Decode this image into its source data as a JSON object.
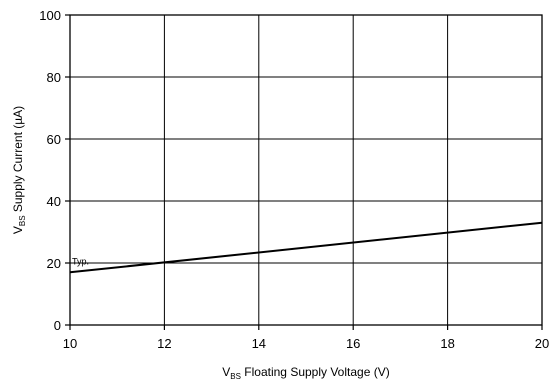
{
  "chart_data": {
    "type": "line",
    "xlabel": {
      "main": "V",
      "sub": "BS",
      "rest": " Floating Supply Voltage (V)"
    },
    "ylabel": {
      "main": "V",
      "sub": "BS",
      "rest": " Supply Current (µA)"
    },
    "xlim": [
      10,
      20
    ],
    "ylim": [
      0,
      100
    ],
    "xticks": [
      10,
      12,
      14,
      16,
      18,
      20
    ],
    "yticks": [
      0,
      20,
      40,
      60,
      80,
      100
    ],
    "grid": true,
    "series": [
      {
        "label": "Typ.",
        "x": [
          10,
          20
        ],
        "y": [
          17,
          33
        ]
      }
    ]
  }
}
